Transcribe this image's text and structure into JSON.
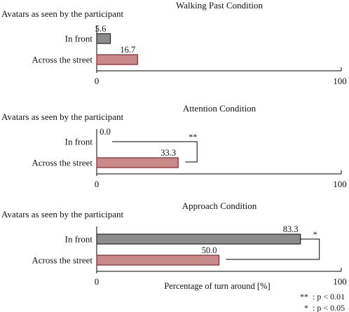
{
  "chart_data": [
    {
      "type": "bar",
      "orientation": "horizontal",
      "title": "Walking Past Condition",
      "group_label": "Avatars as seen by the participant",
      "categories": [
        "In front",
        "Across the street"
      ],
      "values": [
        5.6,
        16.7
      ],
      "value_labels": [
        "5.6",
        "16.7"
      ],
      "colors": [
        "#8c8c8c",
        "#c98a8a"
      ],
      "edge_colors": [
        "#222222",
        "#8b2430"
      ],
      "xlim": [
        0,
        100
      ],
      "ticks": [
        "0",
        "100"
      ],
      "significance": null
    },
    {
      "type": "bar",
      "orientation": "horizontal",
      "title": "Attention Condition",
      "group_label": "Avatars as seen by the participant",
      "categories": [
        "In front",
        "Across the street"
      ],
      "values": [
        0.0,
        33.3
      ],
      "value_labels": [
        "0.0",
        "33.3"
      ],
      "colors": [
        "#8c8c8c",
        "#c98a8a"
      ],
      "edge_colors": [
        "#222222",
        "#8b2430"
      ],
      "xlim": [
        0,
        100
      ],
      "ticks": [
        "0",
        "100"
      ],
      "significance": "**"
    },
    {
      "type": "bar",
      "orientation": "horizontal",
      "title": "Approach Condition",
      "group_label": "Avatars as seen by the participant",
      "categories": [
        "In front",
        "Across the street"
      ],
      "values": [
        83.3,
        50.0
      ],
      "value_labels": [
        "83.3",
        "50.0"
      ],
      "colors": [
        "#8c8c8c",
        "#c98a8a"
      ],
      "edge_colors": [
        "#222222",
        "#8b2430"
      ],
      "xlim": [
        0,
        100
      ],
      "ticks": [
        "0",
        "100"
      ],
      "significance": "*"
    }
  ],
  "xlabel": "Percentage of turn around [%]",
  "legend": [
    {
      "symbol": "**",
      "text": ": p < 0.01"
    },
    {
      "symbol": "*",
      "text": ": p < 0.05"
    }
  ]
}
